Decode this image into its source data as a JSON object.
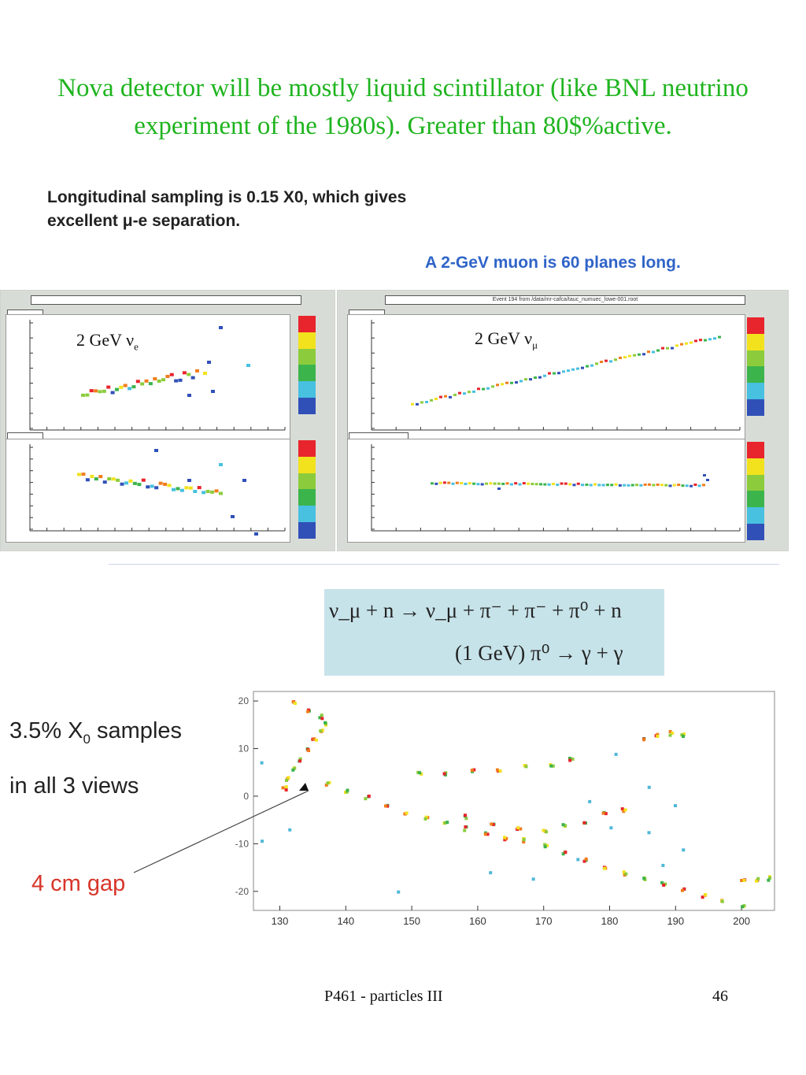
{
  "slide": {
    "title": "Nova detector will be mostly liquid scintillator (like BNL neutrino experiment of the 1980s). Greater than 80$%active.",
    "longitudinal_note_line1": "Longitudinal sampling is 0.15 X0, which gives",
    "longitudinal_note_line2": "excellent μ-e separation.",
    "muon_note": "A 2-GeV muon is 60 planes long.",
    "footer_left": "P461 - particles III",
    "page_number": "46"
  },
  "event_displays": {
    "electron_label": "2 GeV ν",
    "electron_sub": "e",
    "muon_label": "2 GeV ν",
    "muon_sub": "μ",
    "muon_header": "Event 194 from /data/mr-cafca/tauc_numuec_lowe-001.root",
    "palette": [
      "#e8242c",
      "#f07c1c",
      "#f2e21e",
      "#8ccc3c",
      "#3cb44c",
      "#48c0e0",
      "#3050b8"
    ]
  },
  "reaction": {
    "line1": "ν_μ + n → ν_μ + π⁻ + π⁻ + π⁰ + n",
    "line2": "(1 GeV) π⁰ → γ + γ"
  },
  "shower_view": {
    "sampling_note_line1": "3.5% X",
    "sampling_note_sub": "0",
    "sampling_note_line1_end": " samples",
    "sampling_note_line2": "in all 3 views",
    "gap_note": "4 cm gap"
  },
  "chart_data": {
    "type": "scatter",
    "title": "",
    "xlabel": "",
    "ylabel": "",
    "x_ticks": [
      "130",
      "140",
      "150",
      "160",
      "170",
      "180",
      "190",
      "200"
    ],
    "y_ticks": [
      "20",
      "10",
      "0",
      "-10",
      "-20"
    ],
    "xlim": [
      126,
      205
    ],
    "ylim": [
      -24,
      22
    ],
    "series": [
      {
        "values": [
          [
            130.5,
            2
          ],
          [
            131,
            4
          ],
          [
            132,
            6
          ],
          [
            133,
            8
          ],
          [
            134,
            10
          ],
          [
            135,
            12
          ],
          [
            136,
            14
          ],
          [
            136.8,
            15.5
          ],
          [
            136,
            17
          ],
          [
            134,
            18.5
          ],
          [
            132,
            20
          ]
        ]
      },
      {
        "values": [
          [
            137,
            3
          ],
          [
            140,
            1.5
          ],
          [
            143,
            0
          ],
          [
            146,
            -1.5
          ],
          [
            149,
            -3
          ],
          [
            152,
            -4.5
          ],
          [
            155,
            -5.5
          ],
          [
            158,
            -6.5
          ],
          [
            161,
            -7.5
          ],
          [
            164,
            -8.5
          ],
          [
            167,
            -9
          ],
          [
            170,
            -10
          ],
          [
            173,
            -11.5
          ],
          [
            176,
            -13
          ],
          [
            179,
            -14.5
          ],
          [
            182,
            -16
          ],
          [
            185,
            -17
          ],
          [
            188,
            -18
          ],
          [
            191,
            -19.5
          ],
          [
            194,
            -20.5
          ],
          [
            197,
            -21.5
          ],
          [
            200,
            -23
          ]
        ]
      },
      {
        "values": [
          [
            151,
            5
          ],
          [
            155,
            5.2
          ],
          [
            159,
            5.5
          ],
          [
            163,
            6
          ],
          [
            167,
            6.5
          ],
          [
            171,
            7
          ],
          [
            174,
            8
          ]
        ]
      },
      {
        "values": [
          [
            158,
            -4
          ],
          [
            162,
            -5.5
          ],
          [
            166,
            -6.5
          ],
          [
            170,
            -7
          ],
          [
            173,
            -6
          ],
          [
            176,
            -5
          ],
          [
            179,
            -3.5
          ],
          [
            182,
            -2.5
          ]
        ]
      },
      {
        "values": [
          [
            185,
            12
          ],
          [
            187,
            13
          ],
          [
            189,
            13.5
          ],
          [
            191,
            13
          ]
        ]
      },
      {
        "values": [
          [
            200,
            -17
          ],
          [
            202,
            -17.2
          ],
          [
            204,
            -17
          ]
        ]
      },
      {
        "values": [
          [
            127,
            7
          ],
          [
            127,
            -9
          ],
          [
            131,
            -7
          ],
          [
            148,
            -20
          ],
          [
            162,
            -16
          ],
          [
            175,
            -13
          ],
          [
            180,
            -6
          ],
          [
            186,
            -7.5
          ],
          [
            190,
            -2
          ],
          [
            186,
            2
          ],
          [
            177,
            -1
          ],
          [
            181,
            9
          ],
          [
            188,
            -14
          ],
          [
            191,
            -11
          ],
          [
            168,
            -17
          ]
        ]
      }
    ]
  }
}
